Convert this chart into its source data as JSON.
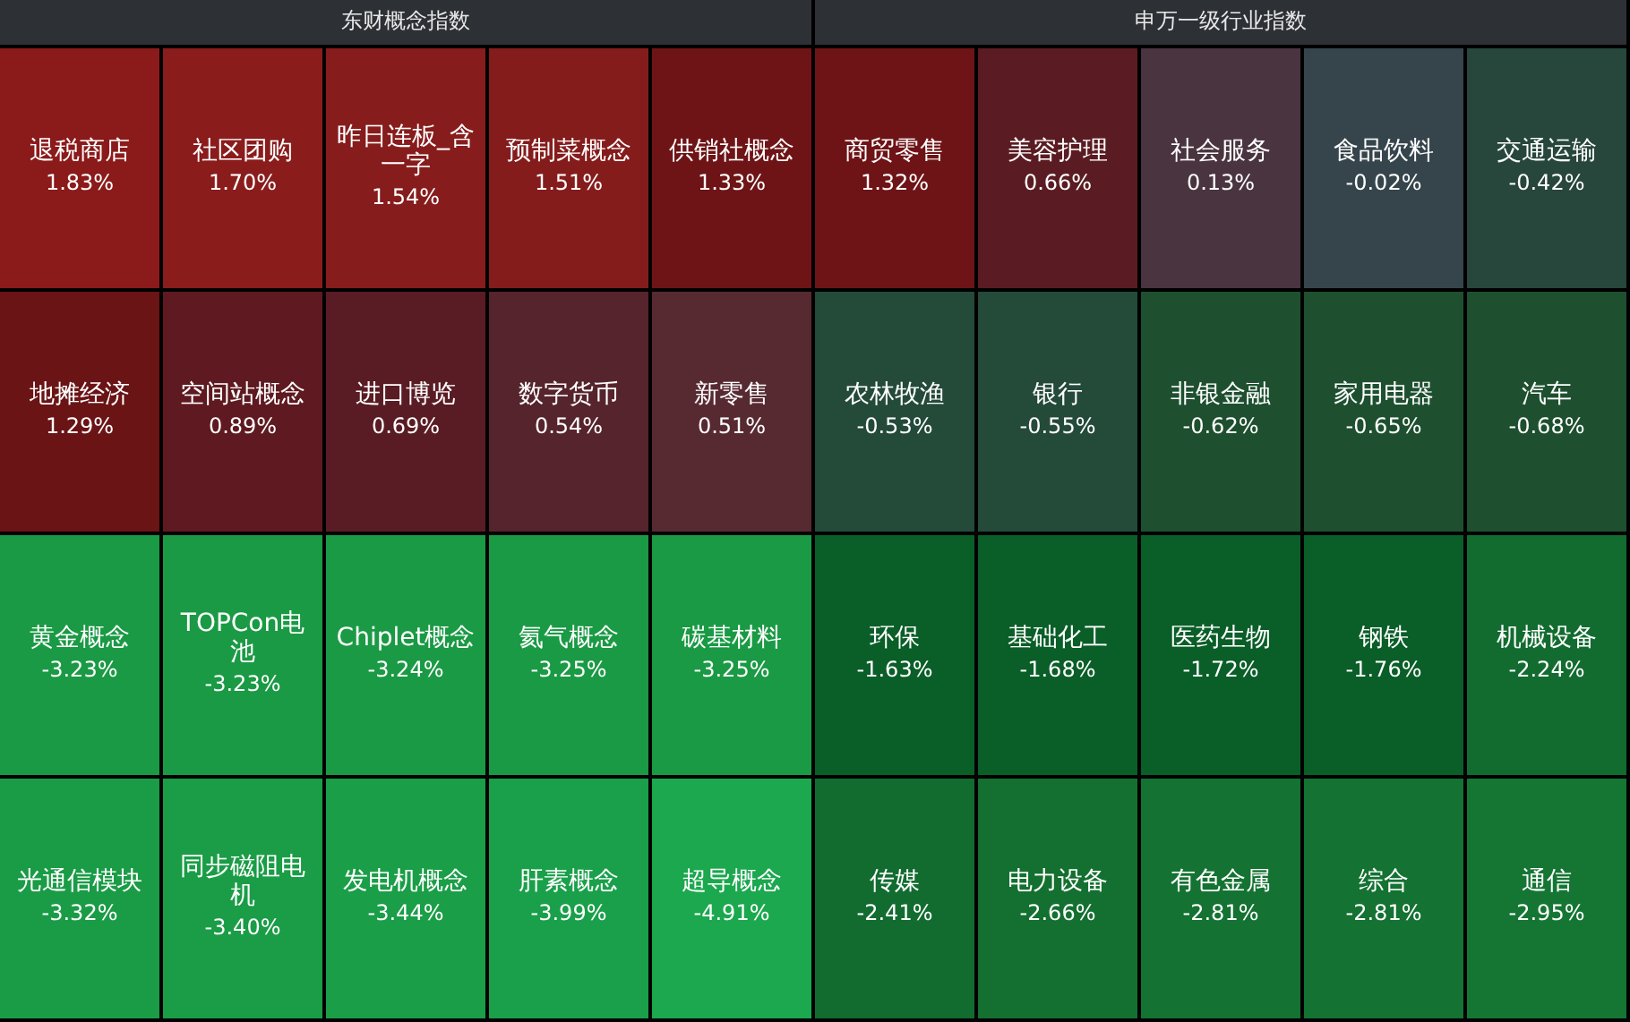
{
  "chart_data": [
    {
      "type": "other",
      "title": "东财概念指数",
      "categories": [
        "退税商店",
        "社区团购",
        "昨日连板_含一字",
        "预制菜概念",
        "供销社概念",
        "地摊经济",
        "空间站概念",
        "进口博览",
        "数字货币",
        "新零售",
        "黄金概念",
        "TOPCon电池",
        "Chiplet概念",
        "氦气概念",
        "碳基材料",
        "光通信模块",
        "同步磁阻电机",
        "发电机概念",
        "肝素概念",
        "超导概念"
      ],
      "values": [
        1.83,
        1.7,
        1.54,
        1.51,
        1.33,
        1.29,
        0.89,
        0.69,
        0.54,
        0.51,
        -3.23,
        -3.23,
        -3.24,
        -3.25,
        -3.25,
        -3.32,
        -3.4,
        -3.44,
        -3.99,
        -4.91
      ],
      "value_labels": [
        "1.83%",
        "1.70%",
        "1.54%",
        "1.51%",
        "1.33%",
        "1.29%",
        "0.89%",
        "0.69%",
        "0.54%",
        "0.51%",
        "-3.23%",
        "-3.23%",
        "-3.24%",
        "-3.25%",
        "-3.25%",
        "-3.32%",
        "-3.40%",
        "-3.44%",
        "-3.99%",
        "-4.91%"
      ],
      "colors": [
        "#8b1a1a",
        "#8a1c1c",
        "#871c1c",
        "#851c1c",
        "#6e1416",
        "#6a1416",
        "#5e1a20",
        "#5a1c24",
        "#56242c",
        "#572a32",
        "#1a9a44",
        "#1a9a44",
        "#1a9a44",
        "#1a9a44",
        "#1a9a44",
        "#1a9c46",
        "#1a9d46",
        "#1a9e47",
        "#1aa04a",
        "#1ba84e"
      ]
    },
    {
      "type": "other",
      "title": "申万一级行业指数",
      "categories": [
        "商贸零售",
        "美容护理",
        "社会服务",
        "食品饮料",
        "交通运输",
        "农林牧渔",
        "银行",
        "非银金融",
        "家用电器",
        "汽车",
        "环保",
        "基础化工",
        "医药生物",
        "钢铁",
        "机械设备",
        "传媒",
        "电力设备",
        "有色金属",
        "综合",
        "通信"
      ],
      "values": [
        1.32,
        0.66,
        0.13,
        -0.02,
        -0.42,
        -0.53,
        -0.55,
        -0.62,
        -0.65,
        -0.68,
        -1.63,
        -1.68,
        -1.72,
        -1.76,
        -2.24,
        -2.41,
        -2.66,
        -2.81,
        -2.81,
        -2.95
      ],
      "value_labels": [
        "1.32%",
        "0.66%",
        "0.13%",
        "-0.02%",
        "-0.42%",
        "-0.53%",
        "-0.55%",
        "-0.62%",
        "-0.65%",
        "-0.68%",
        "-1.63%",
        "-1.68%",
        "-1.72%",
        "-1.76%",
        "-2.24%",
        "-2.41%",
        "-2.66%",
        "-2.81%",
        "-2.81%",
        "-2.95%"
      ],
      "colors": [
        "#6e1416",
        "#5a1c22",
        "#4a3440",
        "#36454c",
        "#27463c",
        "#244a3a",
        "#244a3a",
        "#1e5030",
        "#1e5030",
        "#1e5030",
        "#0a5e28",
        "#0a5e28",
        "#0a5e28",
        "#0a5e28",
        "#126c30",
        "#126c30",
        "#147030",
        "#147232",
        "#147232",
        "#157634"
      ]
    }
  ]
}
